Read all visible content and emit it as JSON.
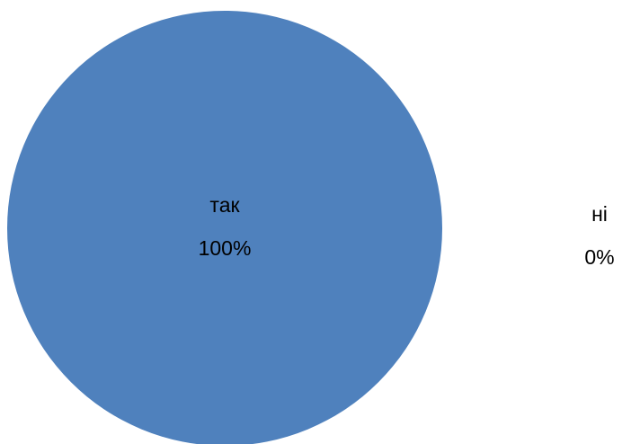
{
  "chart_data": {
    "type": "pie",
    "categories": [
      "так",
      "ні"
    ],
    "values": [
      100,
      0
    ],
    "value_labels": [
      "100%",
      "0%"
    ],
    "color": "#4f81bd"
  }
}
